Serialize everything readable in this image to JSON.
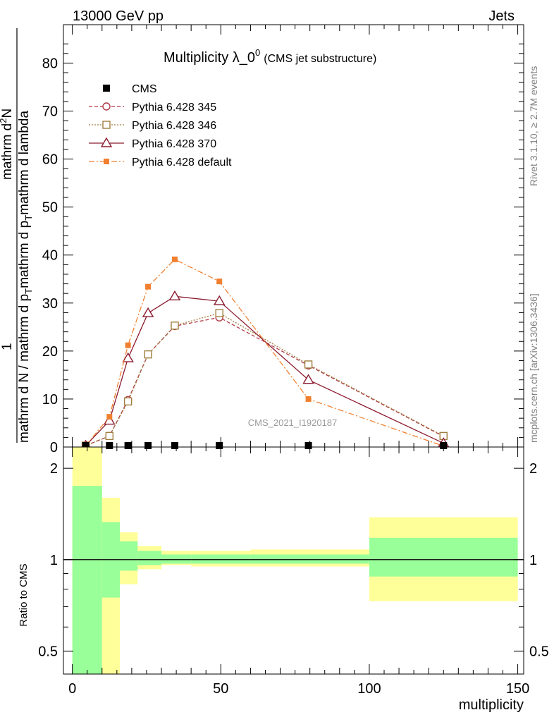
{
  "header": {
    "left": "13000 GeV pp",
    "right": "Jets"
  },
  "side_text": {
    "rivet": "Rivet 3.1.10, ≥ 2.7M events",
    "mcplots": "mcplots.cern.ch [arXiv:1306.3436]"
  },
  "watermark": "CMS_2021_I1920187",
  "chart_data": [
    {
      "type": "line",
      "title": "Multiplicity λ_0",
      "title_sup": "0",
      "subtitle": "(CMS jet substructure)",
      "ylabel_numerator": "1",
      "ylabel_denominator": "mathrm d N / mathrm d p",
      "ylabel_rest": "mathrm d N",
      "ylabel_full": "mathrm d N / mathrm d p_T mathrm d p_T mathrm d lambda",
      "ylabel_top": "mathrm d²N",
      "ylim": [
        0,
        88
      ],
      "yticks": [
        0,
        10,
        20,
        30,
        40,
        50,
        60,
        70,
        80
      ],
      "xlim": [
        -3,
        152
      ],
      "legend_position": "top-left",
      "series": [
        {
          "name": "CMS",
          "color": "#000000",
          "style": "square-marker",
          "x": [
            4.5,
            12.5,
            18.75,
            25.5,
            34.5,
            49.5,
            79.5,
            125.0
          ],
          "y": [
            0.05,
            0.15,
            0.2,
            0.25,
            0.25,
            0.25,
            0.1,
            0.01
          ]
        },
        {
          "name": "Pythia 6.428 345",
          "color": "#b03a48",
          "style": "dashed-circle",
          "x": [
            4.5,
            12.5,
            18.75,
            25.5,
            34.5,
            49.5,
            79.5,
            125.0
          ],
          "y": [
            0.3,
            2.3,
            9.8,
            19.3,
            25.2,
            27.0,
            17.0,
            2.2
          ]
        },
        {
          "name": "Pythia 6.428 346",
          "color": "#a08040",
          "style": "dotted-square",
          "x": [
            4.5,
            12.5,
            18.75,
            25.5,
            34.5,
            49.5,
            79.5,
            125.0
          ],
          "y": [
            0.3,
            2.3,
            9.5,
            19.3,
            25.3,
            27.9,
            17.2,
            2.3
          ]
        },
        {
          "name": "Pythia 6.428 370",
          "color": "#8b1a2e",
          "style": "solid-triangle",
          "x": [
            4.5,
            12.5,
            18.75,
            25.5,
            34.5,
            49.5,
            79.5,
            125.0
          ],
          "y": [
            0.3,
            5.5,
            18.5,
            27.9,
            31.4,
            30.4,
            14.0,
            0.8
          ]
        },
        {
          "name": "Pythia 6.428 default",
          "color": "#f08030",
          "style": "dashdot-filled-square",
          "x": [
            4.5,
            12.5,
            18.75,
            25.5,
            34.5,
            49.5,
            79.5,
            125.0
          ],
          "y": [
            0.3,
            6.3,
            21.2,
            33.4,
            39.1,
            34.5,
            10.0,
            0.2
          ]
        }
      ]
    },
    {
      "type": "area",
      "ylabel": "Ratio to CMS",
      "xlabel": "multiplicity",
      "xlim": [
        -3,
        152
      ],
      "xticks": [
        0,
        50,
        100,
        150
      ],
      "ylim": [
        0.42,
        2.35
      ],
      "yticks": [
        0.5,
        1,
        2
      ],
      "log_scale_y": true,
      "reference_line": 1,
      "bins": [
        {
          "x_low": 0,
          "x_high": 10,
          "stat_low": 0.32,
          "stat_high": 1.75,
          "total_low": 0.32,
          "total_high": 2.45
        },
        {
          "x_low": 10,
          "x_high": 16,
          "stat_low": 0.75,
          "stat_high": 1.33,
          "total_low": 0.4,
          "total_high": 1.6
        },
        {
          "x_low": 16,
          "x_high": 22,
          "stat_low": 0.92,
          "stat_high": 1.15,
          "total_low": 0.83,
          "total_high": 1.23
        },
        {
          "x_low": 22,
          "x_high": 30,
          "stat_low": 0.96,
          "stat_high": 1.07,
          "total_low": 0.93,
          "total_high": 1.11
        },
        {
          "x_low": 30,
          "x_high": 40,
          "stat_low": 0.97,
          "stat_high": 1.04,
          "total_low": 0.96,
          "total_high": 1.07
        },
        {
          "x_low": 40,
          "x_high": 60,
          "stat_low": 0.97,
          "stat_high": 1.04,
          "total_low": 0.95,
          "total_high": 1.07
        },
        {
          "x_low": 60,
          "x_high": 100,
          "stat_low": 0.97,
          "stat_high": 1.04,
          "total_low": 0.95,
          "total_high": 1.08
        },
        {
          "x_low": 100,
          "x_high": 150,
          "stat_low": 0.88,
          "stat_high": 1.18,
          "total_low": 0.73,
          "total_high": 1.38
        }
      ]
    }
  ]
}
